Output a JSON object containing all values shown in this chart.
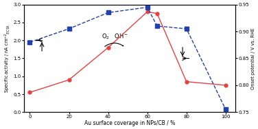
{
  "x": [
    0,
    20,
    40,
    60,
    65,
    80,
    100
  ],
  "specific_activity": [
    0.55,
    0.9,
    1.8,
    2.8,
    2.75,
    0.85,
    0.75
  ],
  "onset_potential": [
    0.88,
    0.905,
    0.935,
    0.945,
    0.91,
    0.905,
    0.755
  ],
  "ylabel_left": "Specific activity / nA cm$^{-2}$$_{\\/mathrm{ECSA}}$",
  "ylabel_right": "Onset potential / V vs. RHE",
  "xlabel": "Au surface coverage in NPs/CB / %",
  "ylim_left": [
    0.0,
    3.0
  ],
  "ylim_right": [
    0.75,
    0.95
  ],
  "yticks_left": [
    0.0,
    0.5,
    1.0,
    1.5,
    2.0,
    2.5,
    3.0
  ],
  "yticks_right": [
    0.75,
    0.8,
    0.85,
    0.9,
    0.95
  ],
  "xticks": [
    0,
    20,
    40,
    60,
    80,
    100
  ],
  "red_color": "#e84040",
  "blue_color": "#2040aa",
  "bg_color": "#ffffff"
}
